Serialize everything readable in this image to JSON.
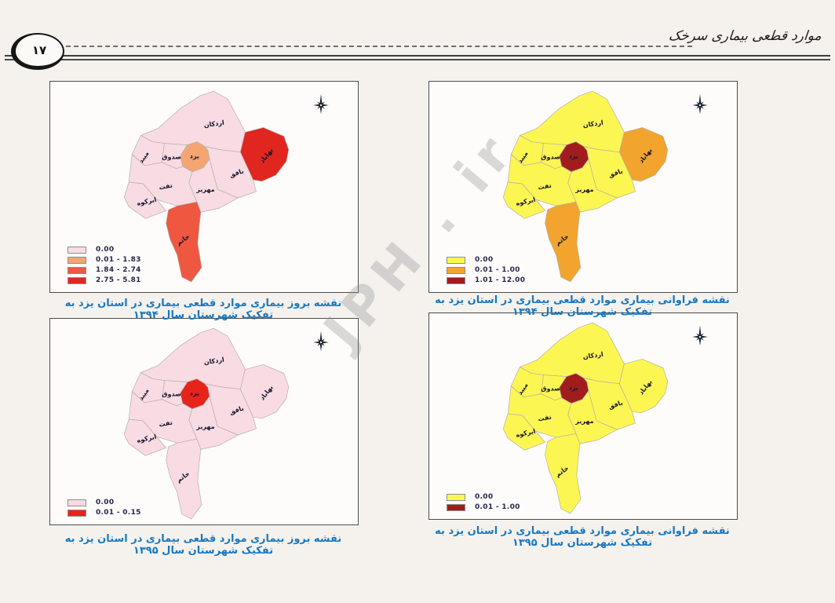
{
  "page": {
    "number": "۱۷",
    "header_title": "موارد قطعی بیماری سرخک"
  },
  "watermark": "JPH . ir",
  "counties": [
    {
      "id": "ardakan",
      "label": "اردکان"
    },
    {
      "id": "meybod",
      "label": "میبد"
    },
    {
      "id": "sadough",
      "label": "صدوق"
    },
    {
      "id": "yazd",
      "label": "یزد"
    },
    {
      "id": "bafq",
      "label": "بافق"
    },
    {
      "id": "bahabad",
      "label": "بهاباد"
    },
    {
      "id": "taft",
      "label": "تفت"
    },
    {
      "id": "mehriz",
      "label": "مهریز"
    },
    {
      "id": "abarkuh",
      "label": "ابرکوه"
    },
    {
      "id": "khatam",
      "label": "خاتم"
    }
  ],
  "maps": [
    {
      "caption": "نقشه بروز بیماری موارد قطعی بیماری در استان یزد به تفکیک شهرستان سال ۱۳۹۴",
      "legend": [
        {
          "label": "0.00",
          "color": "#f8dbe3"
        },
        {
          "label": "0.01 - 1.83",
          "color": "#f4a571"
        },
        {
          "label": "1.84 - 2.74",
          "color": "#ef5740"
        },
        {
          "label": "2.75 - 5.81",
          "color": "#e0261f"
        }
      ],
      "region_class": {
        "ardakan": 0,
        "meybod": 0,
        "sadough": 0,
        "yazd": 1,
        "bafq": 0,
        "bahabad": 3,
        "taft": 0,
        "mehriz": 0,
        "abarkuh": 0,
        "khatam": 2
      }
    },
    {
      "caption": "نقشه فراوانی بیماری موارد قطعی بیماری در استان یزد به تفکیک شهرستان سال ۱۳۹۴",
      "legend": [
        {
          "label": "0.00",
          "color": "#fcf652"
        },
        {
          "label": "0.01 - 1.00",
          "color": "#f2a42e"
        },
        {
          "label": "1.01 - 12.00",
          "color": "#a11d1d"
        }
      ],
      "region_class": {
        "ardakan": 0,
        "meybod": 0,
        "sadough": 0,
        "yazd": 2,
        "bafq": 0,
        "bahabad": 1,
        "taft": 0,
        "mehriz": 0,
        "abarkuh": 0,
        "khatam": 1
      }
    },
    {
      "caption": "نقشه بروز بیماری موارد قطعی بیماری در استان یزد به تفکیک شهرستان سال ۱۳۹۵",
      "legend": [
        {
          "label": "0.00",
          "color": "#f8dbe3"
        },
        {
          "label": "0.01 - 0.15",
          "color": "#e8231c"
        }
      ],
      "region_class": {
        "ardakan": 0,
        "meybod": 0,
        "sadough": 0,
        "yazd": 1,
        "bafq": 0,
        "bahabad": 0,
        "taft": 0,
        "mehriz": 0,
        "abarkuh": 0,
        "khatam": 0
      }
    },
    {
      "caption": "نقشه فراوانی بیماری موارد قطعی بیماری در استان یزد به تفکیک شهرستان سال ۱۳۹۵",
      "legend": [
        {
          "label": "0.00",
          "color": "#fcf652"
        },
        {
          "label": "0.01 - 1.00",
          "color": "#a11d1d"
        }
      ],
      "region_class": {
        "ardakan": 0,
        "meybod": 0,
        "sadough": 0,
        "yazd": 1,
        "bafq": 0,
        "bahabad": 0,
        "taft": 0,
        "mehriz": 0,
        "abarkuh": 0,
        "khatam": 0
      }
    }
  ]
}
